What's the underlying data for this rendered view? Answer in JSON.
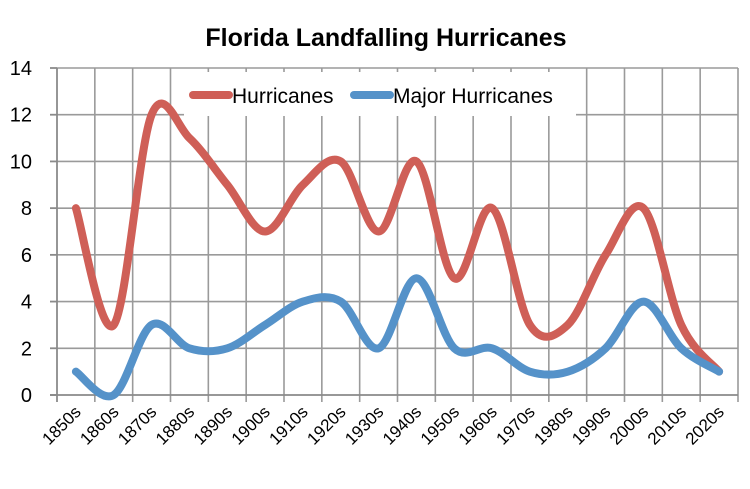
{
  "chart_data": {
    "type": "line",
    "smooth": true,
    "title": "Florida Landfalling Hurricanes",
    "xlabel": "",
    "ylabel": "",
    "ylim": [
      0,
      14
    ],
    "y_ticks": [
      "0",
      "2",
      "4",
      "6",
      "8",
      "10",
      "12",
      "14"
    ],
    "y_tick_values": [
      0,
      2,
      4,
      6,
      8,
      10,
      12,
      14
    ],
    "grid": true,
    "legend_position": "top-center",
    "categories": [
      "1850s",
      "1860s",
      "1870s",
      "1880s",
      "1890s",
      "1900s",
      "1910s",
      "1920s",
      "1930s",
      "1940s",
      "1950s",
      "1960s",
      "1970s",
      "1980s",
      "1990s",
      "2000s",
      "2010s",
      "2020s"
    ],
    "series": [
      {
        "name": "Hurricanes",
        "color": "#cf5f57",
        "values": [
          8,
          3,
          12,
          11,
          9,
          7,
          9,
          10,
          7,
          10,
          5,
          8,
          3,
          3,
          6,
          8,
          3,
          1
        ]
      },
      {
        "name": "Major Hurricanes",
        "color": "#5592c9",
        "values": [
          1,
          0,
          3,
          2,
          2,
          3,
          4,
          4,
          2,
          5,
          2,
          2,
          1,
          1,
          2,
          4,
          2,
          1
        ]
      }
    ]
  }
}
